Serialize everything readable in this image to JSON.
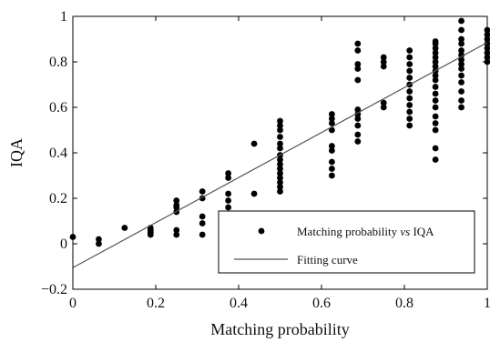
{
  "chart_data": {
    "type": "scatter",
    "title": "",
    "xlabel": "Matching probability",
    "ylabel": "IQA",
    "xlim": [
      0,
      1
    ],
    "ylim": [
      -0.2,
      1
    ],
    "x_ticks": [
      0,
      0.2,
      0.4,
      0.6,
      0.8,
      1
    ],
    "x_tick_labels": [
      "0",
      "0.2",
      "0.4",
      "0.6",
      "0.8",
      "1"
    ],
    "y_ticks": [
      -0.2,
      0,
      0.2,
      0.4,
      0.6,
      0.8,
      1
    ],
    "y_tick_labels": [
      "−0.2",
      "0",
      "0.2",
      "0.4",
      "0.6",
      "0.8",
      "1"
    ],
    "grid": false,
    "legend_position": "bottom-right",
    "legend": {
      "scatter_label_prefix": "Matching probability ",
      "scatter_label_vs": "vs",
      "scatter_label_suffix": " IQA",
      "line_label": "Fitting curve"
    },
    "colors": {
      "points": "#000000",
      "line": "#555555",
      "axes": "#000000"
    },
    "series": [
      {
        "type": "scatter",
        "points": [
          [
            0,
            0.03
          ],
          [
            0.0625,
            0.0
          ],
          [
            0.0625,
            0.02
          ],
          [
            0.125,
            0.07
          ],
          [
            0.1875,
            0.04
          ],
          [
            0.1875,
            0.05
          ],
          [
            0.1875,
            0.06
          ],
          [
            0.1875,
            0.07
          ],
          [
            0.25,
            0.04
          ],
          [
            0.25,
            0.06
          ],
          [
            0.25,
            0.14
          ],
          [
            0.25,
            0.16
          ],
          [
            0.25,
            0.17
          ],
          [
            0.25,
            0.19
          ],
          [
            0.3125,
            0.04
          ],
          [
            0.3125,
            0.09
          ],
          [
            0.3125,
            0.12
          ],
          [
            0.3125,
            0.2
          ],
          [
            0.3125,
            0.23
          ],
          [
            0.375,
            0.16
          ],
          [
            0.375,
            0.19
          ],
          [
            0.375,
            0.22
          ],
          [
            0.375,
            0.29
          ],
          [
            0.375,
            0.31
          ],
          [
            0.4375,
            0.22
          ],
          [
            0.4375,
            0.44
          ],
          [
            0.5,
            0.23
          ],
          [
            0.5,
            0.25
          ],
          [
            0.5,
            0.27
          ],
          [
            0.5,
            0.29
          ],
          [
            0.5,
            0.31
          ],
          [
            0.5,
            0.33
          ],
          [
            0.5,
            0.35
          ],
          [
            0.5,
            0.37
          ],
          [
            0.5,
            0.39
          ],
          [
            0.5,
            0.42
          ],
          [
            0.5,
            0.44
          ],
          [
            0.5,
            0.47
          ],
          [
            0.5,
            0.5
          ],
          [
            0.5,
            0.52
          ],
          [
            0.5,
            0.54
          ],
          [
            0.625,
            0.3
          ],
          [
            0.625,
            0.33
          ],
          [
            0.625,
            0.36
          ],
          [
            0.625,
            0.41
          ],
          [
            0.625,
            0.43
          ],
          [
            0.625,
            0.5
          ],
          [
            0.625,
            0.53
          ],
          [
            0.625,
            0.55
          ],
          [
            0.625,
            0.57
          ],
          [
            0.6875,
            0.45
          ],
          [
            0.6875,
            0.48
          ],
          [
            0.6875,
            0.52
          ],
          [
            0.6875,
            0.55
          ],
          [
            0.6875,
            0.57
          ],
          [
            0.6875,
            0.59
          ],
          [
            0.6875,
            0.72
          ],
          [
            0.6875,
            0.77
          ],
          [
            0.6875,
            0.79
          ],
          [
            0.6875,
            0.85
          ],
          [
            0.6875,
            0.88
          ],
          [
            0.75,
            0.6
          ],
          [
            0.75,
            0.62
          ],
          [
            0.75,
            0.78
          ],
          [
            0.75,
            0.8
          ],
          [
            0.75,
            0.82
          ],
          [
            0.8125,
            0.52
          ],
          [
            0.8125,
            0.55
          ],
          [
            0.8125,
            0.58
          ],
          [
            0.8125,
            0.61
          ],
          [
            0.8125,
            0.64
          ],
          [
            0.8125,
            0.67
          ],
          [
            0.8125,
            0.7
          ],
          [
            0.8125,
            0.73
          ],
          [
            0.8125,
            0.76
          ],
          [
            0.8125,
            0.79
          ],
          [
            0.8125,
            0.82
          ],
          [
            0.8125,
            0.85
          ],
          [
            0.875,
            0.37
          ],
          [
            0.875,
            0.42
          ],
          [
            0.875,
            0.5
          ],
          [
            0.875,
            0.53
          ],
          [
            0.875,
            0.56
          ],
          [
            0.875,
            0.6
          ],
          [
            0.875,
            0.63
          ],
          [
            0.875,
            0.66
          ],
          [
            0.875,
            0.69
          ],
          [
            0.875,
            0.72
          ],
          [
            0.875,
            0.74
          ],
          [
            0.875,
            0.76
          ],
          [
            0.875,
            0.78
          ],
          [
            0.875,
            0.8
          ],
          [
            0.875,
            0.82
          ],
          [
            0.875,
            0.84
          ],
          [
            0.875,
            0.86
          ],
          [
            0.875,
            0.88
          ],
          [
            0.875,
            0.89
          ],
          [
            0.9375,
            0.6
          ],
          [
            0.9375,
            0.63
          ],
          [
            0.9375,
            0.67
          ],
          [
            0.9375,
            0.71
          ],
          [
            0.9375,
            0.74
          ],
          [
            0.9375,
            0.77
          ],
          [
            0.9375,
            0.79
          ],
          [
            0.9375,
            0.81
          ],
          [
            0.9375,
            0.83
          ],
          [
            0.9375,
            0.85
          ],
          [
            0.9375,
            0.88
          ],
          [
            0.9375,
            0.9
          ],
          [
            0.9375,
            0.94
          ],
          [
            0.9375,
            0.98
          ],
          [
            1,
            0.8
          ],
          [
            1,
            0.82
          ],
          [
            1,
            0.84
          ],
          [
            1,
            0.86
          ],
          [
            1,
            0.88
          ],
          [
            1,
            0.9
          ],
          [
            1,
            0.92
          ],
          [
            1,
            0.94
          ]
        ]
      },
      {
        "type": "line",
        "points": [
          [
            0,
            -0.105
          ],
          [
            1,
            0.885
          ]
        ]
      }
    ]
  }
}
